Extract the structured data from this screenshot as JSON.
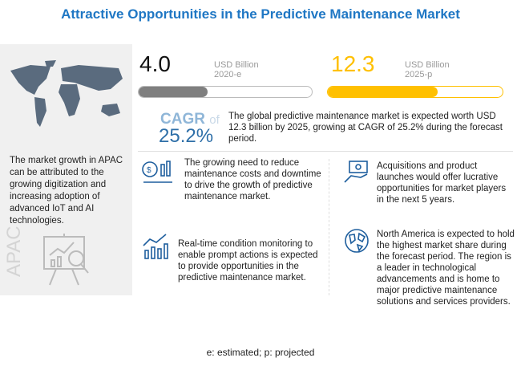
{
  "title": "Attractive Opportunities in the Predictive Maintenance Market",
  "left_panel": {
    "text": "The market growth in APAC can be attributed to the growing digitization and increasing adoption of advanced IoT and AI technologies.",
    "region_label": "APAC"
  },
  "metric_2020": {
    "value": "4.0",
    "unit": "USD Billion",
    "year": "2020-e",
    "progress_pct": 40,
    "color": "#7f7f7f"
  },
  "metric_2025": {
    "value": "12.3",
    "unit": "USD Billion",
    "year": "2025-p",
    "progress_pct": 63,
    "color": "#ffc000"
  },
  "cagr": {
    "label": "CAGR",
    "of": "of",
    "value": "25.2%",
    "description": "The global predictive maintenance market is expected worth USD 12.3 billion by 2025, growing at CAGR of 25.2% during the forecast period."
  },
  "insights": [
    "The growing need to reduce maintenance costs and downtime to drive the growth of predictive maintenance market.",
    "Acquisitions and product launches would offer lucrative opportunities for market players in the next 5 years.",
    "Real-time condition monitoring to enable prompt actions is expected to provide opportunities in the predictive maintenance market.",
    "North America is expected to hold the highest market share during the forecast period. The region is a leader in technological advancements and is home to major predictive maintenance solutions and services providers."
  ],
  "footnote": "e: estimated; p: projected"
}
